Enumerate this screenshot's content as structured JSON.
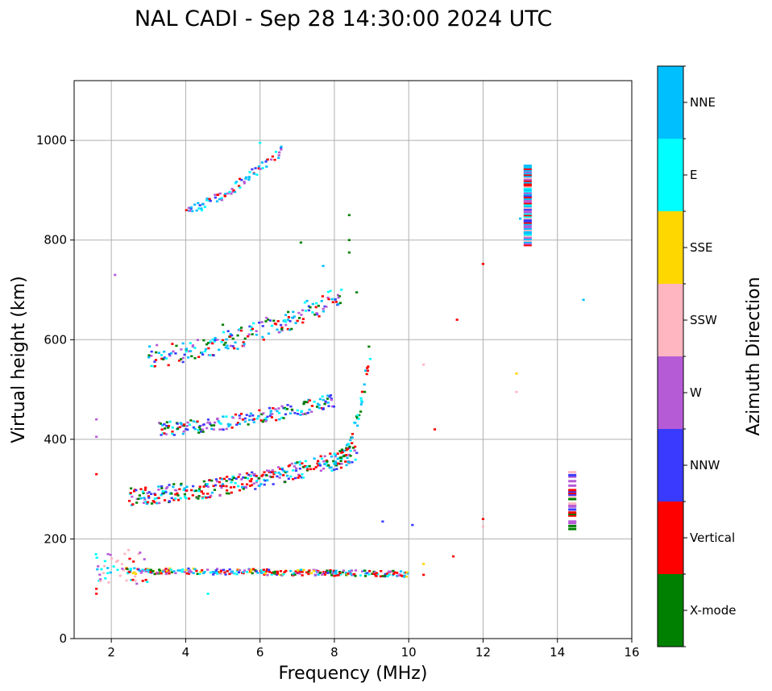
{
  "chart_data": {
    "type": "scatter",
    "title": "NAL CADI - Sep 28 14:30:00 2024 UTC",
    "xlabel": "Frequency (MHz)",
    "ylabel": "Virtual height (km)",
    "xlim": [
      1,
      16
    ],
    "ylim": [
      0,
      1120
    ],
    "xticks": [
      2,
      4,
      6,
      8,
      10,
      12,
      14,
      16
    ],
    "yticks": [
      0,
      200,
      400,
      600,
      800,
      1000
    ],
    "grid": true,
    "colorbar": {
      "label": "Azimuth Direction",
      "categories": [
        {
          "name": "X-mode",
          "color": "#008000"
        },
        {
          "name": "Vertical",
          "color": "#ff0000"
        },
        {
          "name": "NNW",
          "color": "#3a3aff"
        },
        {
          "name": "W",
          "color": "#b65bd6"
        },
        {
          "name": "SSW",
          "color": "#ffb6c1"
        },
        {
          "name": "SSE",
          "color": "#ffd700"
        },
        {
          "name": "E",
          "color": "#00ffff"
        },
        {
          "name": "NNE",
          "color": "#00bfff"
        }
      ]
    },
    "traces": [
      {
        "name": "E-layer",
        "f_start": 2.4,
        "f_end": 10.0,
        "h_start": 136,
        "h_end": 130,
        "curve": 0.3,
        "spread": 6,
        "mix": [
          "Vertical",
          "Vertical",
          "X-mode",
          "NNE",
          "NNW",
          "SSE",
          "E",
          "W"
        ],
        "step": 0.045
      },
      {
        "name": "E-layer low fringe",
        "f_start": 1.6,
        "f_end": 3.0,
        "h_start": 150,
        "h_end": 140,
        "curve": 0.0,
        "spread": 35,
        "mix": [
          "Vertical",
          "SSW",
          "NNE",
          "E",
          "W"
        ],
        "step": 0.06
      },
      {
        "name": "F-layer trace",
        "f_start": 2.5,
        "f_end": 8.6,
        "h_start": 285,
        "h_end": 370,
        "curve": 2.2,
        "spread": 18,
        "mix": [
          "Vertical",
          "Vertical",
          "NNE",
          "NNW",
          "E",
          "X-mode",
          "W"
        ],
        "step": 0.035
      },
      {
        "name": "F-layer cusp",
        "f_start": 8.0,
        "f_end": 9.0,
        "h_start": 360,
        "h_end": 600,
        "curve": 0.0,
        "spread": 14,
        "mix": [
          "X-mode",
          "X-mode",
          "E",
          "Vertical",
          "NNE"
        ],
        "step": 0.05
      },
      {
        "name": "2F echo",
        "f_start": 3.3,
        "f_end": 8.0,
        "h_start": 420,
        "h_end": 480,
        "curve": 1.8,
        "spread": 14,
        "mix": [
          "Vertical",
          "NNE",
          "E",
          "X-mode",
          "NNW",
          "W"
        ],
        "step": 0.045
      },
      {
        "name": "3F echo",
        "f_start": 3.0,
        "f_end": 8.2,
        "h_start": 565,
        "h_end": 690,
        "curve": 1.6,
        "spread": 22,
        "mix": [
          "NNE",
          "NNE",
          "Vertical",
          "E",
          "NNW",
          "W",
          "X-mode"
        ],
        "step": 0.045
      },
      {
        "name": "4F echo",
        "f_start": 4.0,
        "f_end": 6.6,
        "h_start": 855,
        "h_end": 985,
        "curve": 0.8,
        "spread": 10,
        "mix": [
          "NNE",
          "NNE",
          "Vertical",
          "E",
          "NNW",
          "W"
        ],
        "step": 0.06
      }
    ],
    "clusters": [
      {
        "name": "13 MHz column",
        "f": 13.2,
        "h_start": 790,
        "h_end": 950,
        "mix": [
          "NNE",
          "W",
          "NNW",
          "Vertical",
          "SSW",
          "E"
        ]
      },
      {
        "name": "14.4 MHz column",
        "f": 14.4,
        "h_start": 220,
        "h_end": 335,
        "mix": [
          "X-mode",
          "Vertical",
          "W",
          "NNW",
          "SSW"
        ]
      }
    ],
    "isolated": [
      {
        "f": 1.6,
        "h": 440,
        "mode": "W"
      },
      {
        "f": 1.6,
        "h": 405,
        "mode": "W"
      },
      {
        "f": 1.6,
        "h": 330,
        "mode": "Vertical"
      },
      {
        "f": 1.6,
        "h": 100,
        "mode": "Vertical"
      },
      {
        "f": 1.6,
        "h": 90,
        "mode": "Vertical"
      },
      {
        "f": 2.1,
        "h": 730,
        "mode": "W"
      },
      {
        "f": 4.6,
        "h": 90,
        "mode": "E"
      },
      {
        "f": 5.0,
        "h": 630,
        "mode": "X-mode"
      },
      {
        "f": 6.0,
        "h": 995,
        "mode": "E"
      },
      {
        "f": 6.5,
        "h": 965,
        "mode": "NNE"
      },
      {
        "f": 7.1,
        "h": 795,
        "mode": "X-mode"
      },
      {
        "f": 7.7,
        "h": 748,
        "mode": "NNE"
      },
      {
        "f": 8.4,
        "h": 850,
        "mode": "X-mode"
      },
      {
        "f": 8.4,
        "h": 800,
        "mode": "X-mode"
      },
      {
        "f": 8.4,
        "h": 775,
        "mode": "X-mode"
      },
      {
        "f": 8.6,
        "h": 695,
        "mode": "X-mode"
      },
      {
        "f": 9.3,
        "h": 235,
        "mode": "NNW"
      },
      {
        "f": 10.1,
        "h": 228,
        "mode": "NNW"
      },
      {
        "f": 10.4,
        "h": 550,
        "mode": "SSW"
      },
      {
        "f": 10.4,
        "h": 150,
        "mode": "SSE"
      },
      {
        "f": 10.4,
        "h": 128,
        "mode": "Vertical"
      },
      {
        "f": 10.7,
        "h": 420,
        "mode": "Vertical"
      },
      {
        "f": 11.3,
        "h": 640,
        "mode": "Vertical"
      },
      {
        "f": 11.2,
        "h": 165,
        "mode": "Vertical"
      },
      {
        "f": 12.0,
        "h": 752,
        "mode": "Vertical"
      },
      {
        "f": 12.0,
        "h": 240,
        "mode": "Vertical"
      },
      {
        "f": 12.0,
        "h": 225,
        "mode": "SSW"
      },
      {
        "f": 12.9,
        "h": 532,
        "mode": "SSE"
      },
      {
        "f": 12.9,
        "h": 495,
        "mode": "SSW"
      },
      {
        "f": 13.0,
        "h": 843,
        "mode": "NNE"
      },
      {
        "f": 14.7,
        "h": 680,
        "mode": "NNE"
      }
    ]
  }
}
